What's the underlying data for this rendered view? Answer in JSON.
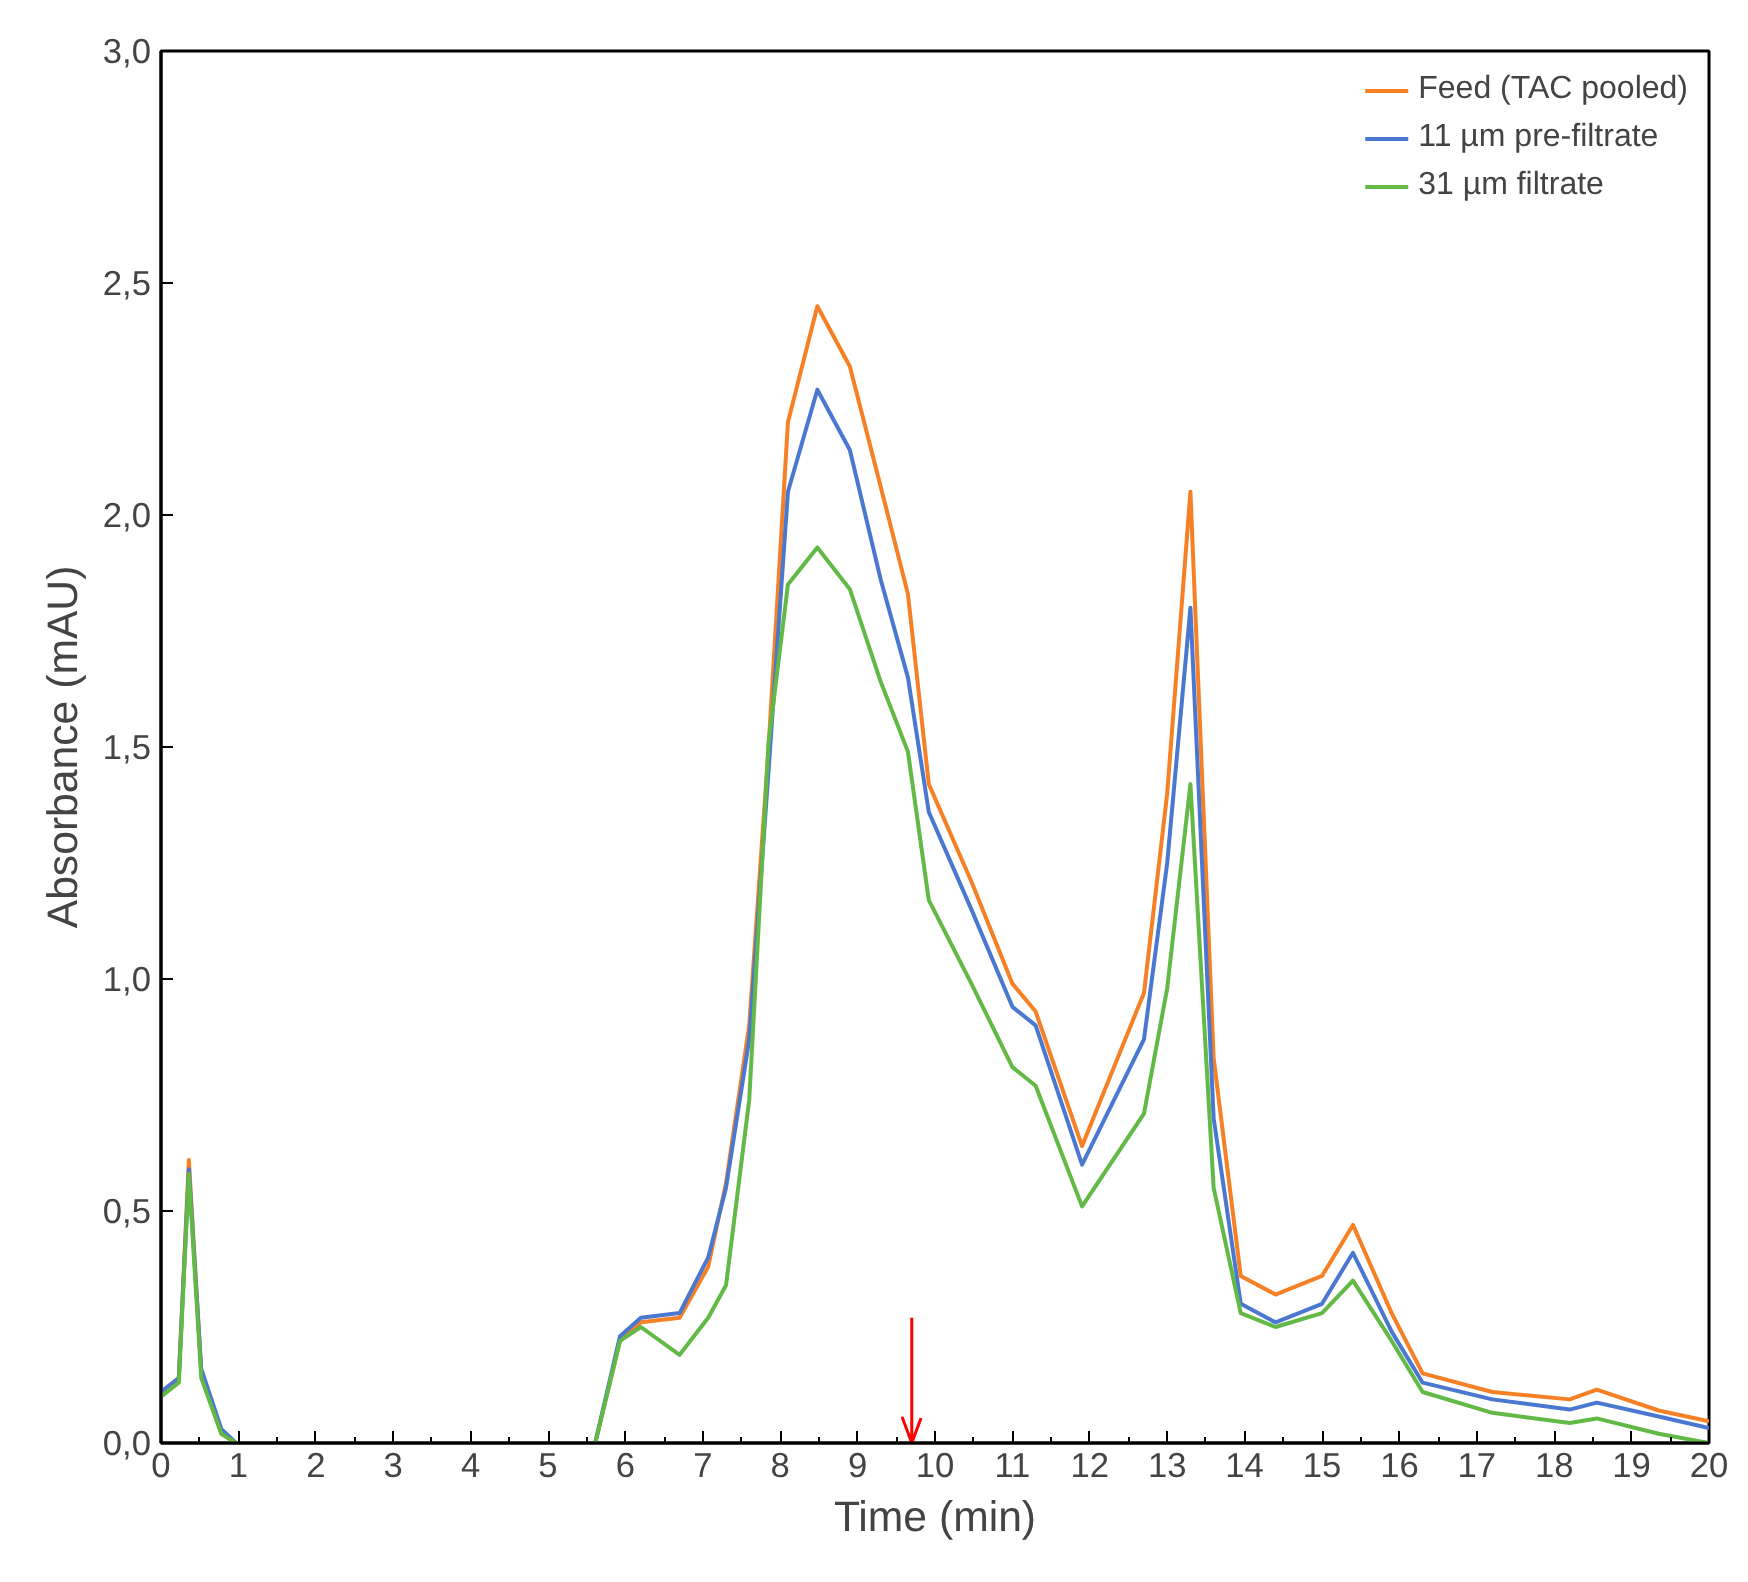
{
  "chart_data": {
    "type": "line",
    "xlabel": "Time (min)",
    "ylabel": "Absorbance (mAU)",
    "x": [
      0,
      0.23,
      0.36,
      0.52,
      0.78,
      0.97,
      3.0,
      5.61,
      5.93,
      6.2,
      6.7,
      7.07,
      7.3,
      7.6,
      7.85,
      8.1,
      8.48,
      8.9,
      9.3,
      9.65,
      9.92,
      10.47,
      11.0,
      11.3,
      11.9,
      12.7,
      13.0,
      13.3,
      13.6,
      13.95,
      14.4,
      15.0,
      15.4,
      15.9,
      16.3,
      17.2,
      18.2,
      18.55,
      19.35,
      20
    ],
    "series": [
      {
        "name": "Feed (TAC pooled)",
        "color": "#f58025",
        "values": [
          0.11,
          0.14,
          0.61,
          0.15,
          0.02,
          0,
          null,
          0,
          0.22,
          0.26,
          0.27,
          0.38,
          0.56,
          0.9,
          1.5,
          2.2,
          2.45,
          2.32,
          2.06,
          1.83,
          1.42,
          1.21,
          0.99,
          0.93,
          0.64,
          0.97,
          1.4,
          2.05,
          0.83,
          0.36,
          0.32,
          0.36,
          0.47,
          0.28,
          0.15,
          0.11,
          0.094,
          0.115,
          0.07,
          0.047
        ]
      },
      {
        "name": "11 µm pre-filtrate",
        "color": "#4a78d0",
        "values": [
          0.11,
          0.14,
          0.59,
          0.16,
          0.03,
          0,
          null,
          0,
          0.23,
          0.27,
          0.28,
          0.4,
          0.55,
          0.87,
          1.45,
          2.05,
          2.27,
          2.14,
          1.86,
          1.65,
          1.36,
          1.15,
          0.94,
          0.9,
          0.6,
          0.87,
          1.25,
          1.8,
          0.7,
          0.3,
          0.26,
          0.3,
          0.41,
          0.24,
          0.13,
          0.094,
          0.072,
          0.087,
          0.057,
          0.032
        ]
      },
      {
        "name": "31 µm filtrate",
        "color": "#62b946",
        "values": [
          0.1,
          0.13,
          0.58,
          0.14,
          0.02,
          0,
          null,
          0,
          0.22,
          0.25,
          0.19,
          0.27,
          0.34,
          0.74,
          1.51,
          1.85,
          1.93,
          1.84,
          1.64,
          1.49,
          1.17,
          0.99,
          0.81,
          0.77,
          0.51,
          0.71,
          0.98,
          1.42,
          0.55,
          0.28,
          0.25,
          0.28,
          0.35,
          0.22,
          0.11,
          0.065,
          0.043,
          0.053,
          0.02,
          0.0
        ]
      }
    ],
    "xlim": [
      0,
      20
    ],
    "xticks": [
      0,
      1,
      2,
      3,
      4,
      5,
      6,
      7,
      8,
      9,
      10,
      11,
      12,
      13,
      14,
      15,
      16,
      17,
      18,
      19,
      20
    ],
    "ylim": [
      0,
      3.0
    ],
    "yticks": [
      {
        "value": 0,
        "label": "0,0"
      },
      {
        "value": 0.5,
        "label": "0,5"
      },
      {
        "value": 1.0,
        "label": "1,0"
      },
      {
        "value": 1.5,
        "label": "1,5"
      },
      {
        "value": 2.0,
        "label": "2,0"
      },
      {
        "value": 2.5,
        "label": "2,5"
      },
      {
        "value": 3.0,
        "label": "3,0"
      }
    ],
    "ref_lines": [
      {
        "axis": "x",
        "value": 9.7,
        "color": "#ff0000"
      }
    ],
    "legend": "top right",
    "grid": false,
    "marker": "none",
    "line_style": "solid"
  }
}
